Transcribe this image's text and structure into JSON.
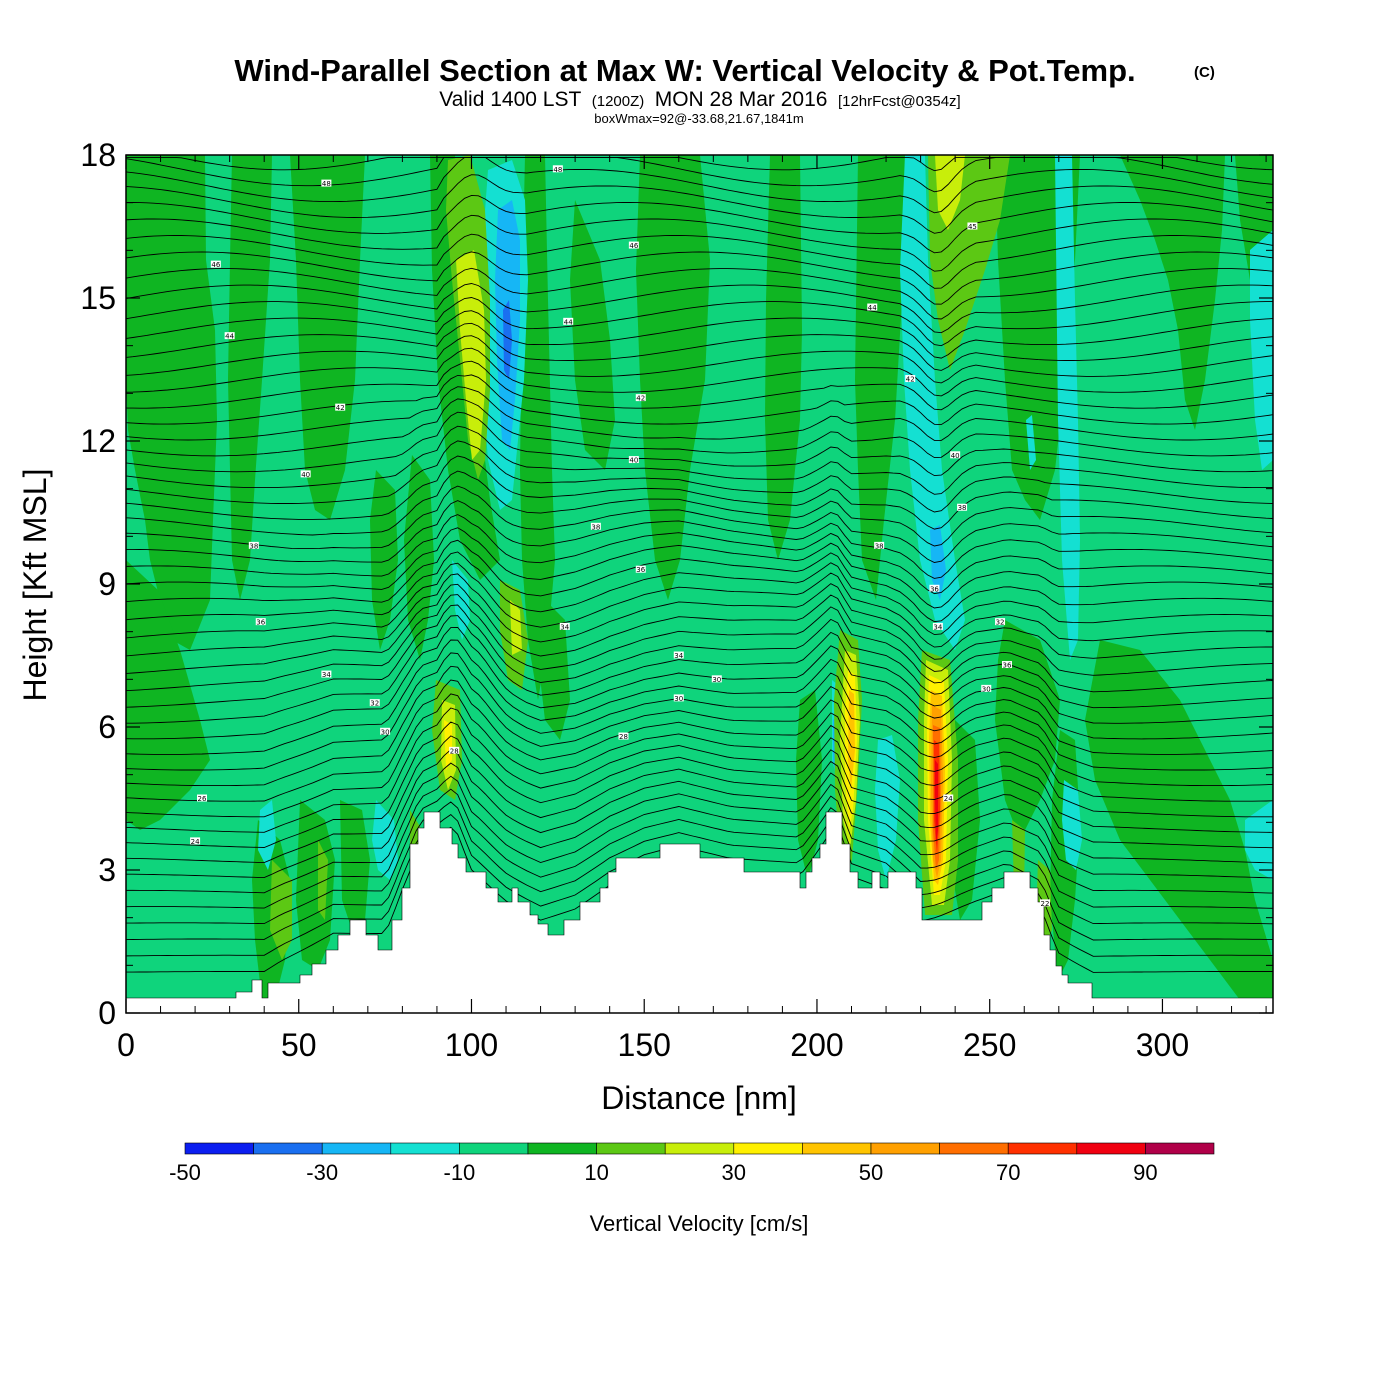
{
  "chart_data": {
    "type": "heatmap",
    "title": "Wind-Parallel Section at Max W: Vertical Velocity & Pot.Temp.",
    "title_mark": "(C)",
    "subtitle": {
      "prefix": "Valid 1400 LST",
      "zulu": "(1200Z)",
      "date": "MON 28 Mar 2016",
      "forecast": "[12hrFcst@0354z]"
    },
    "note": "boxWmax=92@-33.68,21.67,1841m",
    "xlabel": "Distance [nm]",
    "ylabel": "Height [Kft MSL]",
    "xlim": [
      0,
      332
    ],
    "ylim": [
      0,
      18
    ],
    "x_ticks": [
      0,
      50,
      100,
      150,
      200,
      250,
      300
    ],
    "y_ticks": [
      0,
      3,
      6,
      9,
      12,
      15,
      18
    ],
    "colorbar": {
      "label": "Vertical Velocity [cm/s]",
      "levels": [
        -50,
        -40,
        -30,
        -20,
        -10,
        0,
        10,
        20,
        30,
        40,
        50,
        60,
        70,
        80,
        90,
        100
      ],
      "tick_labels": [
        "-50",
        "-30",
        "-10",
        "10",
        "30",
        "50",
        "70",
        "90"
      ],
      "colors": [
        "#0b1ef0",
        "#1a6ff0",
        "#16b6f5",
        "#14e0d2",
        "#0fd47c",
        "#0fb522",
        "#5cc814",
        "#c8ee0a",
        "#fff000",
        "#ffc400",
        "#ffa000",
        "#ff6e00",
        "#ff3000",
        "#f00010",
        "#b00048"
      ]
    },
    "theta_contour_labels": [
      {
        "x": 58,
        "y": 17.4,
        "text": "48"
      },
      {
        "x": 125,
        "y": 17.7,
        "text": "48"
      },
      {
        "x": 26,
        "y": 15.7,
        "text": "46"
      },
      {
        "x": 147,
        "y": 16.1,
        "text": "46"
      },
      {
        "x": 245,
        "y": 16.5,
        "text": "45"
      },
      {
        "x": 30,
        "y": 14.2,
        "text": "44"
      },
      {
        "x": 128,
        "y": 14.5,
        "text": "44"
      },
      {
        "x": 216,
        "y": 14.8,
        "text": "44"
      },
      {
        "x": 62,
        "y": 12.7,
        "text": "42"
      },
      {
        "x": 149,
        "y": 12.9,
        "text": "42"
      },
      {
        "x": 227,
        "y": 13.3,
        "text": "42"
      },
      {
        "x": 52,
        "y": 11.3,
        "text": "40"
      },
      {
        "x": 147,
        "y": 11.6,
        "text": "40"
      },
      {
        "x": 240,
        "y": 11.7,
        "text": "40"
      },
      {
        "x": 37,
        "y": 9.8,
        "text": "38"
      },
      {
        "x": 136,
        "y": 10.2,
        "text": "38"
      },
      {
        "x": 242,
        "y": 10.6,
        "text": "38"
      },
      {
        "x": 218,
        "y": 9.8,
        "text": "38"
      },
      {
        "x": 149,
        "y": 9.3,
        "text": "36"
      },
      {
        "x": 234,
        "y": 8.9,
        "text": "36"
      },
      {
        "x": 39,
        "y": 8.2,
        "text": "36"
      },
      {
        "x": 127,
        "y": 8.1,
        "text": "34"
      },
      {
        "x": 235,
        "y": 8.1,
        "text": "34"
      },
      {
        "x": 253,
        "y": 8.2,
        "text": "32"
      },
      {
        "x": 160,
        "y": 7.5,
        "text": "34"
      },
      {
        "x": 58,
        "y": 7.1,
        "text": "34"
      },
      {
        "x": 171,
        "y": 7.0,
        "text": "30"
      },
      {
        "x": 255,
        "y": 7.3,
        "text": "36"
      },
      {
        "x": 160,
        "y": 6.6,
        "text": "30"
      },
      {
        "x": 72,
        "y": 6.5,
        "text": "32"
      },
      {
        "x": 249,
        "y": 6.8,
        "text": "30"
      },
      {
        "x": 75,
        "y": 5.9,
        "text": "30"
      },
      {
        "x": 144,
        "y": 5.8,
        "text": "28"
      },
      {
        "x": 95,
        "y": 5.5,
        "text": "28"
      },
      {
        "x": 22,
        "y": 4.5,
        "text": "26"
      },
      {
        "x": 238,
        "y": 4.5,
        "text": "24"
      },
      {
        "x": 20,
        "y": 3.6,
        "text": "24"
      },
      {
        "x": 266,
        "y": 2.3,
        "text": "22"
      }
    ]
  }
}
